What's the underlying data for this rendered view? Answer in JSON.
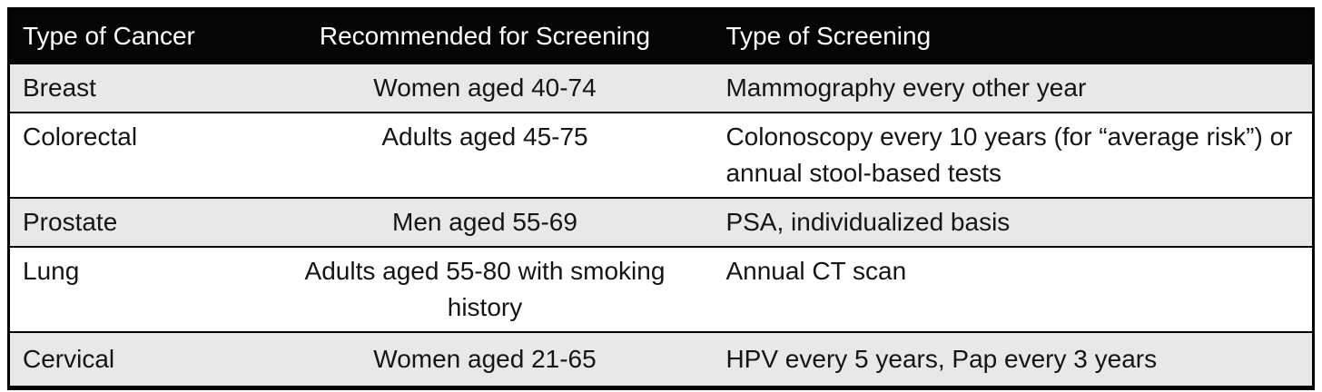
{
  "chart_data": {
    "type": "table",
    "columns": [
      "Type of Cancer",
      "Recommended for Screening",
      "Type of Screening"
    ],
    "column_align": [
      "left",
      "center",
      "left"
    ],
    "rows": [
      [
        "Breast",
        "Women aged 40-74",
        "Mammography every other year"
      ],
      [
        "Colorectal",
        "Adults aged 45-75",
        "Colonoscopy every 10 years (for “average risk”) or annual stool-based tests"
      ],
      [
        "Prostate",
        "Men aged 55-69",
        "PSA, individualized basis"
      ],
      [
        "Lung",
        "Adults aged 55-80 with smoking history",
        "Annual CT scan"
      ],
      [
        "Cervical",
        "Women aged 21-65",
        "HPV every 5 years, Pap every 3 years"
      ]
    ],
    "legend": "none",
    "grid": "horizontal row separators only"
  },
  "colors": {
    "header_bg": "#050505",
    "header_text": "#ffffff",
    "stripe_bg": "#e8e8e8",
    "row_bg": "#ffffff",
    "border": "#000000",
    "body_text": "#151515"
  }
}
